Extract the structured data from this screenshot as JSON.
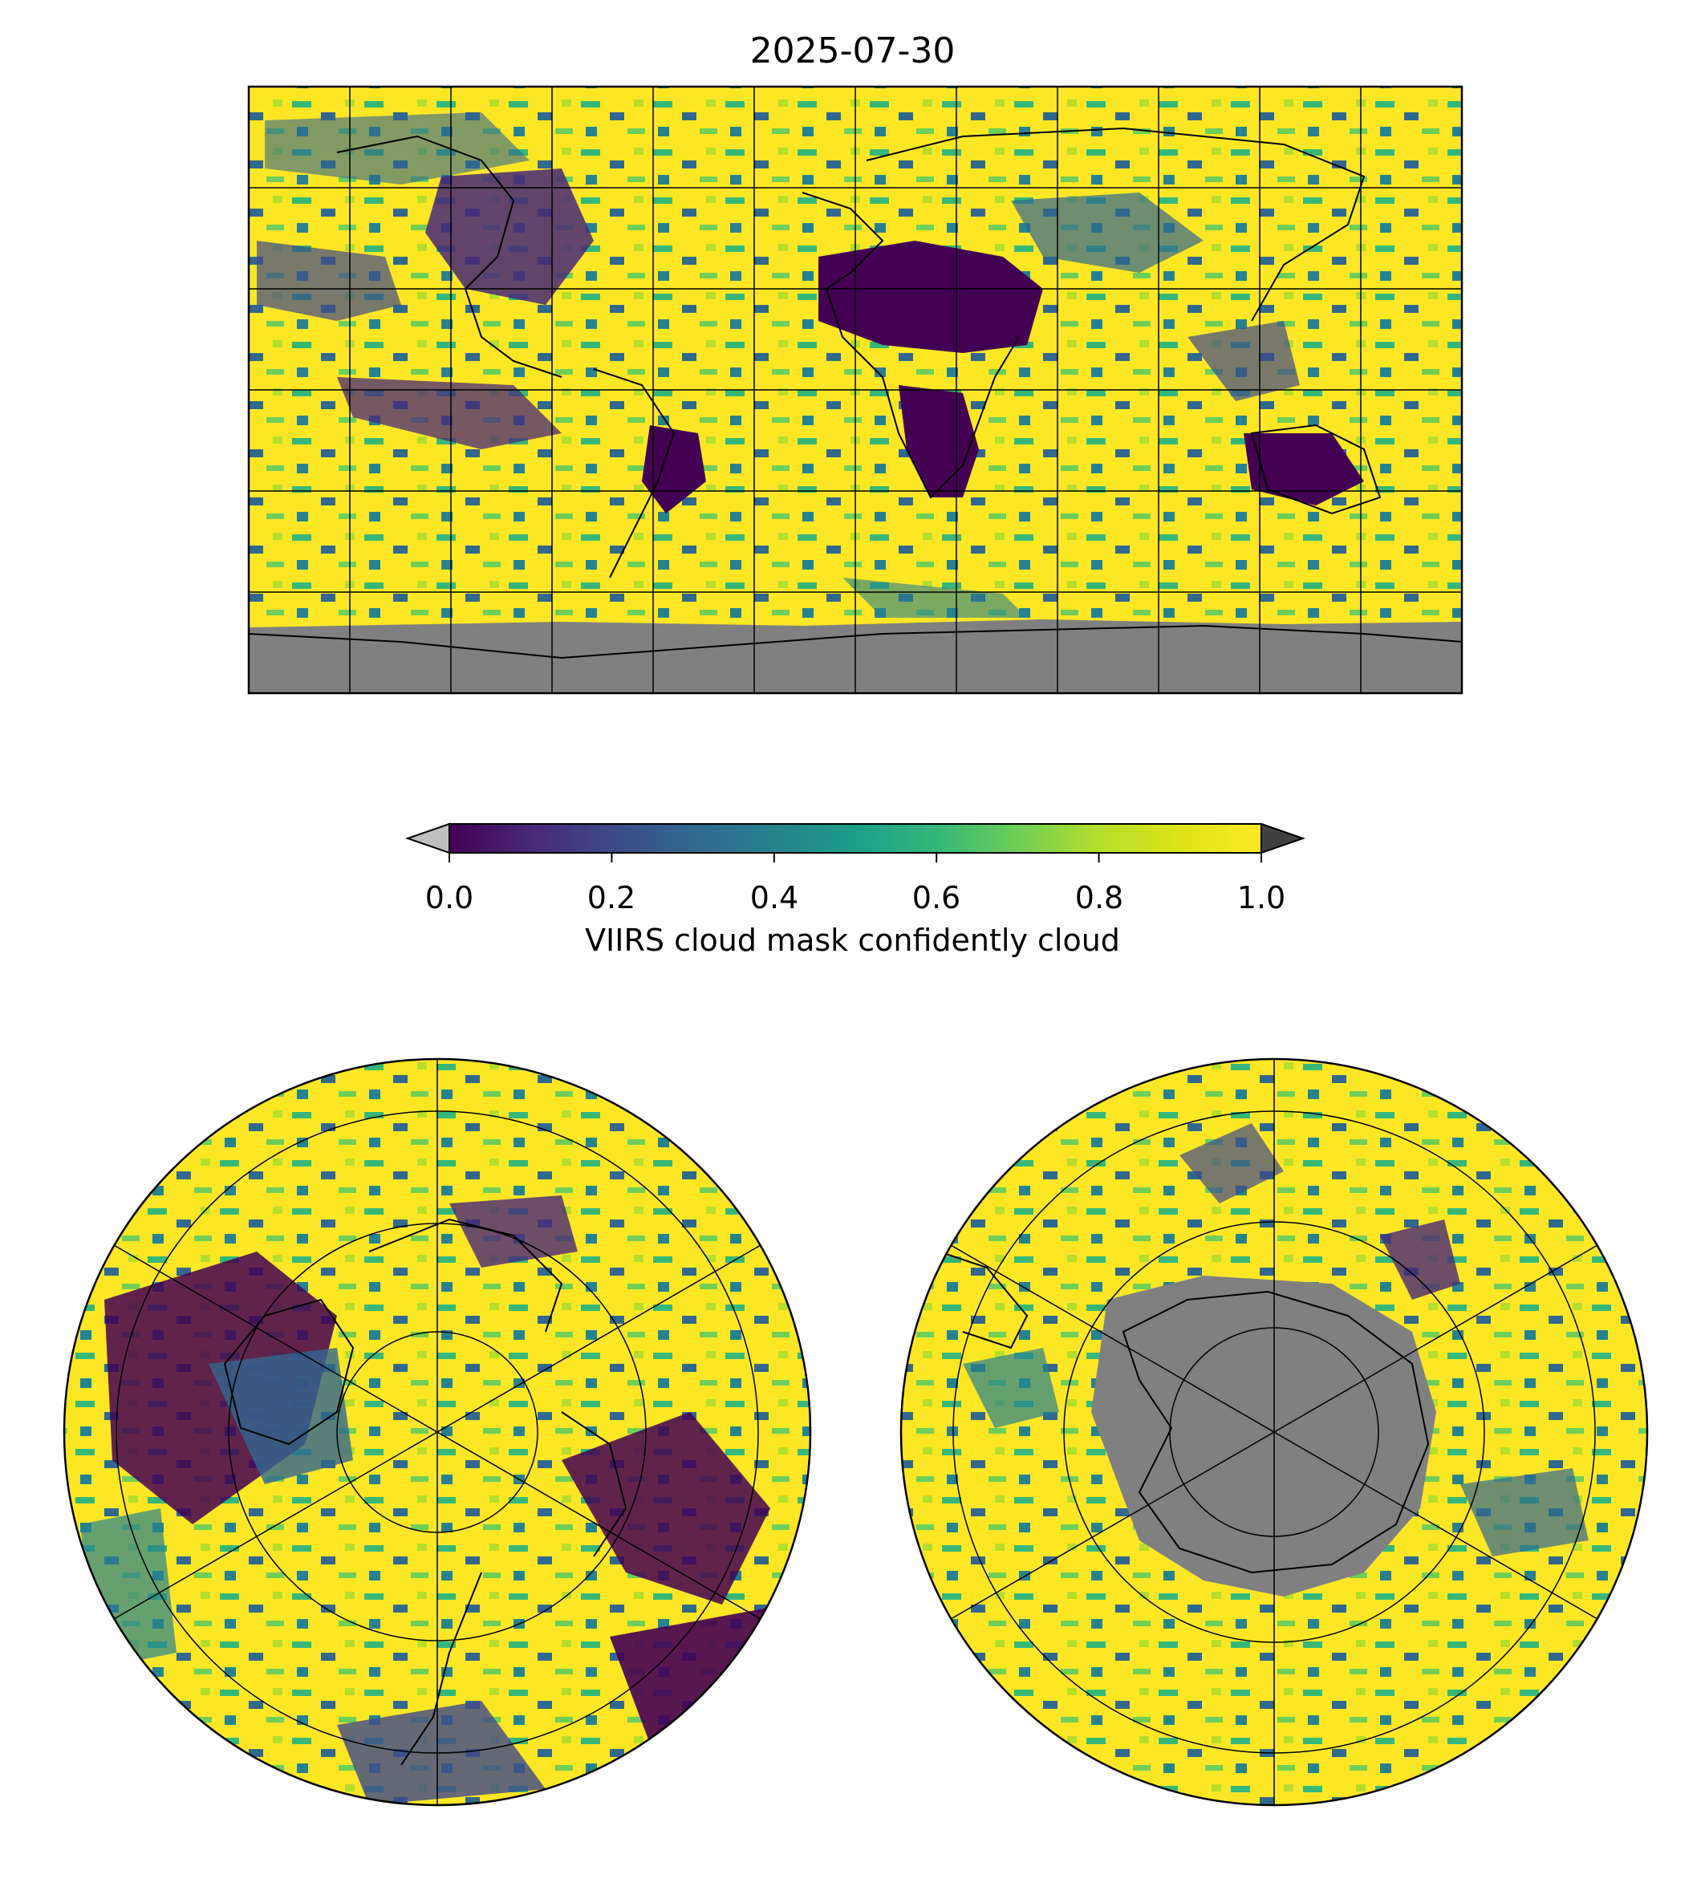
{
  "title": "2025-07-30",
  "colorbar": {
    "label": "VIIRS cloud mask confidently cloud",
    "ticks": [
      "0.0",
      "0.2",
      "0.4",
      "0.6",
      "0.8",
      "1.0"
    ],
    "range": [
      0.0,
      1.0
    ],
    "colormap": "viridis",
    "extend": "both",
    "under_color": "#bfbfbf",
    "over_color": "#404040"
  },
  "colors": {
    "no_data": "#808080",
    "coastline": "#000000",
    "gridline": "#000000"
  },
  "maps": [
    {
      "name": "global",
      "projection": "PlateCarree"
    },
    {
      "name": "north-polar",
      "projection": "NorthPolarStereo"
    },
    {
      "name": "south-polar",
      "projection": "SouthPolarStereo"
    }
  ]
}
